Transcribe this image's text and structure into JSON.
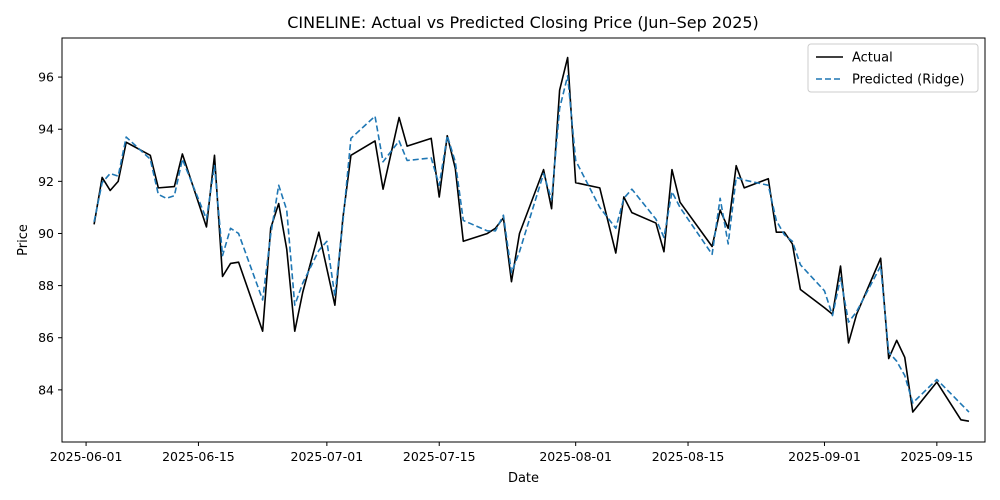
{
  "chart_data": {
    "type": "line",
    "title": "CINELINE: Actual vs Predicted Closing Price (Jun–Sep 2025)",
    "xlabel": "Date",
    "ylabel": "Price",
    "xlim": [
      "2025-05-29",
      "2025-09-21"
    ],
    "ylim": [
      82.0,
      97.5
    ],
    "x_ticks": [
      "2025-06-01",
      "2025-06-15",
      "2025-07-01",
      "2025-07-15",
      "2025-08-01",
      "2025-08-15",
      "2025-09-01",
      "2025-09-15"
    ],
    "y_ticks": [
      84,
      86,
      88,
      90,
      92,
      94,
      96
    ],
    "grid": false,
    "legend_position": "top-right",
    "series": [
      {
        "name": "Actual",
        "color": "#000000",
        "style": "solid",
        "points": [
          [
            "2025-06-02",
            90.35
          ],
          [
            "2025-06-03",
            92.15
          ],
          [
            "2025-06-04",
            91.65
          ],
          [
            "2025-06-05",
            92.0
          ],
          [
            "2025-06-06",
            93.5
          ],
          [
            "2025-06-09",
            93.0
          ],
          [
            "2025-06-10",
            91.75
          ],
          [
            "2025-06-12",
            91.8
          ],
          [
            "2025-06-13",
            93.05
          ],
          [
            "2025-06-16",
            90.25
          ],
          [
            "2025-06-17",
            93.0
          ],
          [
            "2025-06-18",
            88.35
          ],
          [
            "2025-06-19",
            88.85
          ],
          [
            "2025-06-20",
            88.9
          ],
          [
            "2025-06-23",
            86.25
          ],
          [
            "2025-06-24",
            90.2
          ],
          [
            "2025-06-25",
            91.15
          ],
          [
            "2025-06-26",
            89.4
          ],
          [
            "2025-06-27",
            86.25
          ],
          [
            "2025-06-28",
            87.75
          ],
          [
            "2025-06-30",
            90.05
          ],
          [
            "2025-07-02",
            87.25
          ],
          [
            "2025-07-03",
            90.6
          ],
          [
            "2025-07-04",
            93.0
          ],
          [
            "2025-07-07",
            93.55
          ],
          [
            "2025-07-08",
            91.7
          ],
          [
            "2025-07-10",
            94.45
          ],
          [
            "2025-07-11",
            93.35
          ],
          [
            "2025-07-14",
            93.65
          ],
          [
            "2025-07-15",
            91.4
          ],
          [
            "2025-07-16",
            93.75
          ],
          [
            "2025-07-17",
            92.5
          ],
          [
            "2025-07-18",
            89.7
          ],
          [
            "2025-07-21",
            90.0
          ],
          [
            "2025-07-22",
            90.2
          ],
          [
            "2025-07-23",
            90.6
          ],
          [
            "2025-07-24",
            88.15
          ],
          [
            "2025-07-25",
            90.0
          ],
          [
            "2025-07-28",
            92.45
          ],
          [
            "2025-07-29",
            90.95
          ],
          [
            "2025-07-30",
            95.5
          ],
          [
            "2025-07-31",
            96.75
          ],
          [
            "2025-08-01",
            91.95
          ],
          [
            "2025-08-04",
            91.75
          ],
          [
            "2025-08-06",
            89.25
          ],
          [
            "2025-08-07",
            91.4
          ],
          [
            "2025-08-08",
            90.8
          ],
          [
            "2025-08-11",
            90.4
          ],
          [
            "2025-08-12",
            89.3
          ],
          [
            "2025-08-13",
            92.45
          ],
          [
            "2025-08-14",
            91.2
          ],
          [
            "2025-08-18",
            89.5
          ],
          [
            "2025-08-19",
            90.9
          ],
          [
            "2025-08-20",
            90.2
          ],
          [
            "2025-08-21",
            92.6
          ],
          [
            "2025-08-22",
            91.75
          ],
          [
            "2025-08-25",
            92.1
          ],
          [
            "2025-08-26",
            90.05
          ],
          [
            "2025-08-27",
            90.05
          ],
          [
            "2025-08-28",
            89.6
          ],
          [
            "2025-08-29",
            87.85
          ],
          [
            "2025-09-01",
            87.15
          ],
          [
            "2025-09-02",
            86.9
          ],
          [
            "2025-09-03",
            88.75
          ],
          [
            "2025-09-04",
            85.8
          ],
          [
            "2025-09-05",
            86.9
          ],
          [
            "2025-09-08",
            89.05
          ],
          [
            "2025-09-09",
            85.2
          ],
          [
            "2025-09-10",
            85.9
          ],
          [
            "2025-09-11",
            85.25
          ],
          [
            "2025-09-12",
            83.15
          ],
          [
            "2025-09-15",
            84.3
          ],
          [
            "2025-09-18",
            82.85
          ],
          [
            "2025-09-19",
            82.8
          ]
        ]
      },
      {
        "name": "Predicted (Ridge)",
        "color": "#1f77b4",
        "style": "dashed",
        "points": [
          [
            "2025-06-02",
            90.45
          ],
          [
            "2025-06-03",
            91.95
          ],
          [
            "2025-06-04",
            92.3
          ],
          [
            "2025-06-05",
            92.2
          ],
          [
            "2025-06-06",
            93.7
          ],
          [
            "2025-06-09",
            92.85
          ],
          [
            "2025-06-10",
            91.5
          ],
          [
            "2025-06-11",
            91.35
          ],
          [
            "2025-06-12",
            91.45
          ],
          [
            "2025-06-13",
            92.85
          ],
          [
            "2025-06-16",
            90.55
          ],
          [
            "2025-06-17",
            92.6
          ],
          [
            "2025-06-18",
            89.15
          ],
          [
            "2025-06-19",
            90.2
          ],
          [
            "2025-06-20",
            90.0
          ],
          [
            "2025-06-23",
            87.45
          ],
          [
            "2025-06-24",
            89.95
          ],
          [
            "2025-06-25",
            91.85
          ],
          [
            "2025-06-26",
            90.9
          ],
          [
            "2025-06-27",
            87.25
          ],
          [
            "2025-06-28",
            88.1
          ],
          [
            "2025-06-30",
            89.35
          ],
          [
            "2025-07-01",
            89.7
          ],
          [
            "2025-07-02",
            87.6
          ],
          [
            "2025-07-03",
            90.45
          ],
          [
            "2025-07-04",
            93.65
          ],
          [
            "2025-07-07",
            94.5
          ],
          [
            "2025-07-08",
            92.75
          ],
          [
            "2025-07-10",
            93.55
          ],
          [
            "2025-07-11",
            92.8
          ],
          [
            "2025-07-14",
            92.9
          ],
          [
            "2025-07-15",
            91.85
          ],
          [
            "2025-07-16",
            93.75
          ],
          [
            "2025-07-17",
            92.75
          ],
          [
            "2025-07-18",
            90.5
          ],
          [
            "2025-07-21",
            90.1
          ],
          [
            "2025-07-22",
            90.1
          ],
          [
            "2025-07-23",
            90.7
          ],
          [
            "2025-07-24",
            88.5
          ],
          [
            "2025-07-25",
            89.3
          ],
          [
            "2025-07-28",
            92.3
          ],
          [
            "2025-07-29",
            91.3
          ],
          [
            "2025-07-30",
            94.8
          ],
          [
            "2025-07-31",
            96.05
          ],
          [
            "2025-08-01",
            92.8
          ],
          [
            "2025-08-04",
            91.0
          ],
          [
            "2025-08-06",
            90.2
          ],
          [
            "2025-08-07",
            91.35
          ],
          [
            "2025-08-08",
            91.7
          ],
          [
            "2025-08-11",
            90.55
          ],
          [
            "2025-08-12",
            89.85
          ],
          [
            "2025-08-13",
            91.6
          ],
          [
            "2025-08-14",
            91.0
          ],
          [
            "2025-08-18",
            89.2
          ],
          [
            "2025-08-19",
            91.35
          ],
          [
            "2025-08-20",
            89.6
          ],
          [
            "2025-08-21",
            92.15
          ],
          [
            "2025-08-22",
            92.05
          ],
          [
            "2025-08-25",
            91.85
          ],
          [
            "2025-08-26",
            90.5
          ],
          [
            "2025-08-27",
            89.95
          ],
          [
            "2025-08-28",
            89.7
          ],
          [
            "2025-08-29",
            88.8
          ],
          [
            "2025-09-01",
            87.8
          ],
          [
            "2025-09-02",
            86.85
          ],
          [
            "2025-09-03",
            88.3
          ],
          [
            "2025-09-04",
            86.6
          ],
          [
            "2025-09-05",
            87.0
          ],
          [
            "2025-09-08",
            88.75
          ],
          [
            "2025-09-09",
            85.45
          ],
          [
            "2025-09-10",
            85.1
          ],
          [
            "2025-09-11",
            84.55
          ],
          [
            "2025-09-12",
            83.5
          ],
          [
            "2025-09-15",
            84.4
          ],
          [
            "2025-09-19",
            83.15
          ]
        ]
      }
    ]
  }
}
